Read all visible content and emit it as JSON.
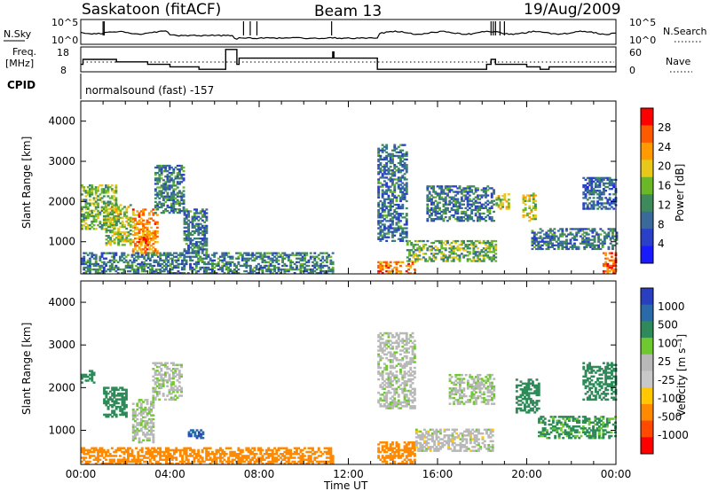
{
  "header": {
    "title": "Saskatoon (fitACF)",
    "beam": "Beam 13",
    "date": "19/Aug/2009"
  },
  "status_panels": {
    "n_sky_label": "N.Sky",
    "n_search_label": "N.Search",
    "noise_ticks": [
      "10^5",
      "10^0"
    ],
    "freq_label_line1": "Freq.",
    "freq_label_line2": "[MHz]",
    "freq_ticks": [
      "18",
      "8"
    ],
    "nave_label": "Nave",
    "nave_ticks": [
      "60",
      "0"
    ],
    "cpid_label": "CPID",
    "cpid_text": "normalsound (fast) -157"
  },
  "colors": {
    "power_scale": [
      "#1a1aff",
      "#2a40c8",
      "#3a6a9a",
      "#3f8a5a",
      "#6ab828",
      "#e8c818",
      "#ff9a00",
      "#ff5a00",
      "#ff0000"
    ],
    "velocity_scale": [
      "#2a3fc0",
      "#2a6aa8",
      "#2e8a58",
      "#70c830",
      "#b8b8b8",
      "#c8c8c8",
      "#ffc800",
      "#ff8a00",
      "#ff4a00",
      "#ff0000"
    ]
  },
  "chart_data": [
    {
      "type": "heatmap",
      "title": "",
      "xlabel": "Time UT",
      "ylabel": "Slant Range [km]",
      "x_ticks": [
        "00:00",
        "04:00",
        "08:00",
        "12:00",
        "16:00",
        "20:00",
        "00:00"
      ],
      "y_ticks": [
        1000,
        2000,
        3000,
        4000
      ],
      "ylim": [
        200,
        4500
      ],
      "colorbar_label": "Power [dB]",
      "colorbar_ticks": [
        4,
        8,
        12,
        16,
        20,
        24,
        28
      ],
      "colorbar_range": [
        0,
        30
      ],
      "data_gap_hours": [
        11.3,
        13.3
      ],
      "echo_regions": [
        {
          "t0": 0.0,
          "t1": 1.6,
          "r0": 1300,
          "r1": 2400,
          "power": 14
        },
        {
          "t0": 1.1,
          "t1": 2.2,
          "r0": 900,
          "r1": 1900,
          "power": 16
        },
        {
          "t0": 2.3,
          "t1": 3.4,
          "r0": 700,
          "r1": 1800,
          "power": 22
        },
        {
          "t0": 2.6,
          "t1": 3.0,
          "r0": 900,
          "r1": 1100,
          "power": 27
        },
        {
          "t0": 3.3,
          "t1": 4.6,
          "r0": 1700,
          "r1": 2900,
          "power": 10
        },
        {
          "t0": 4.6,
          "t1": 5.6,
          "r0": 700,
          "r1": 1800,
          "power": 9
        },
        {
          "t0": 0.0,
          "t1": 11.3,
          "r0": 200,
          "r1": 700,
          "power": 10
        },
        {
          "t0": 13.3,
          "t1": 14.6,
          "r0": 1000,
          "r1": 3400,
          "power": 9
        },
        {
          "t0": 13.3,
          "t1": 15.0,
          "r0": 200,
          "r1": 500,
          "power": 24
        },
        {
          "t0": 14.6,
          "t1": 18.6,
          "r0": 500,
          "r1": 1000,
          "power": 14
        },
        {
          "t0": 15.5,
          "t1": 18.5,
          "r0": 1500,
          "r1": 2400,
          "power": 9
        },
        {
          "t0": 18.6,
          "t1": 19.2,
          "r0": 1800,
          "r1": 2200,
          "power": 18
        },
        {
          "t0": 19.8,
          "t1": 20.4,
          "r0": 1500,
          "r1": 2200,
          "power": 17
        },
        {
          "t0": 20.2,
          "t1": 24.0,
          "r0": 800,
          "r1": 1300,
          "power": 9
        },
        {
          "t0": 22.5,
          "t1": 24.0,
          "r0": 1800,
          "r1": 2600,
          "power": 8
        },
        {
          "t0": 23.4,
          "t1": 24.0,
          "r0": 200,
          "r1": 700,
          "power": 25
        }
      ]
    },
    {
      "type": "heatmap",
      "title": "",
      "xlabel": "Time UT",
      "ylabel": "Slant Range [km]",
      "x_ticks": [
        "00:00",
        "04:00",
        "08:00",
        "12:00",
        "16:00",
        "20:00",
        "00:00"
      ],
      "y_ticks": [
        1000,
        2000,
        3000,
        4000
      ],
      "ylim": [
        200,
        4500
      ],
      "colorbar_label": "Velocity [m s⁻¹]",
      "colorbar_ticks": [
        "1000",
        "500",
        "100",
        "25",
        "-25",
        "-100",
        "-500",
        "-1000"
      ],
      "data_gap_hours": [
        11.3,
        13.3
      ],
      "echo_regions": [
        {
          "t0": 0.0,
          "t1": 0.6,
          "r0": 2100,
          "r1": 2400,
          "velocity": 150
        },
        {
          "t0": 1.0,
          "t1": 2.0,
          "r0": 1300,
          "r1": 2000,
          "velocity": 120
        },
        {
          "t0": 2.3,
          "t1": 3.2,
          "r0": 700,
          "r1": 1700,
          "velocity": 20
        },
        {
          "t0": 3.2,
          "t1": 4.5,
          "r0": 1700,
          "r1": 2600,
          "velocity": 10
        },
        {
          "t0": 4.8,
          "t1": 5.5,
          "r0": 800,
          "r1": 1000,
          "velocity": 600
        },
        {
          "t0": 0.0,
          "t1": 11.3,
          "r0": 200,
          "r1": 600,
          "velocity": -200
        },
        {
          "t0": 13.3,
          "t1": 15.0,
          "r0": 200,
          "r1": 700,
          "velocity": -300
        },
        {
          "t0": 13.3,
          "t1": 15.0,
          "r0": 1500,
          "r1": 3300,
          "velocity": 5
        },
        {
          "t0": 15.0,
          "t1": 18.5,
          "r0": 500,
          "r1": 1000,
          "velocity": 0
        },
        {
          "t0": 16.5,
          "t1": 18.5,
          "r0": 1600,
          "r1": 2300,
          "velocity": 15
        },
        {
          "t0": 19.5,
          "t1": 20.5,
          "r0": 1400,
          "r1": 2200,
          "velocity": 150
        },
        {
          "t0": 20.5,
          "t1": 24.0,
          "r0": 800,
          "r1": 1300,
          "velocity": 80
        },
        {
          "t0": 22.5,
          "t1": 24.0,
          "r0": 1700,
          "r1": 2600,
          "velocity": 150
        }
      ]
    }
  ]
}
